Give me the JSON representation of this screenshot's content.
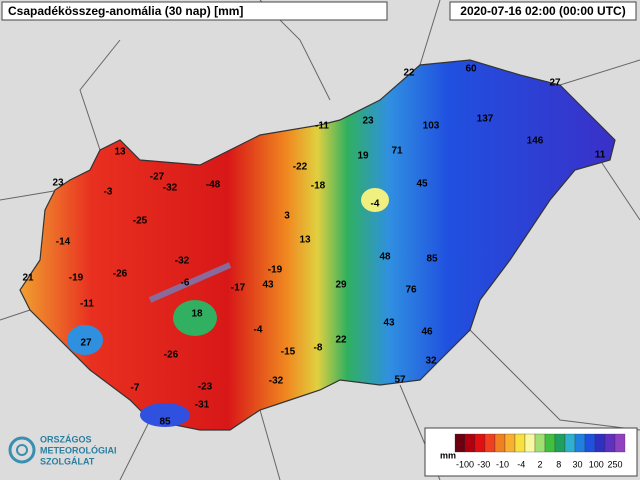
{
  "header": {
    "title": "Csapadékösszeg-anomália (30 nap) [mm]",
    "time": "2020-07-16 02:00 (00:00 UTC)"
  },
  "labels": [
    13,
    23,
    -3,
    -27,
    -32,
    -48,
    -11,
    23,
    22,
    60,
    27,
    103,
    137,
    146,
    11,
    19,
    71,
    -22,
    -18,
    45,
    -4,
    -25,
    -14,
    3,
    13,
    48,
    85,
    -32,
    -19,
    21,
    -19,
    -26,
    -6,
    -17,
    43,
    29,
    76,
    -11,
    18,
    -4,
    43,
    46,
    27,
    22,
    -8,
    -15,
    -26,
    32,
    -7,
    -23,
    -32,
    57,
    -31,
    85
  ],
  "legend": {
    "unit": "mm",
    "labels": [
      -100,
      -30,
      -10,
      -4,
      2,
      8,
      30,
      100,
      250
    ]
  },
  "logo": {
    "lines": [
      "ORSZÁGOS",
      "METEOROLÓGIAI",
      "SZOLGÁLAT"
    ]
  }
}
